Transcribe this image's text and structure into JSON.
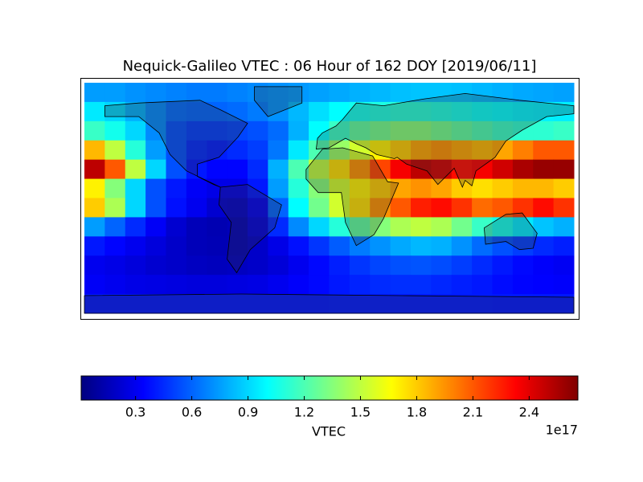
{
  "chart_data": {
    "type": "heatmap",
    "title": "Nequick-Galileo VTEC : 06 Hour of 162 DOY [2019/06/11]",
    "colormap": "jet",
    "values": [
      [
        0.75,
        0.75,
        0.72,
        0.7,
        0.68,
        0.66,
        0.66,
        0.68,
        0.7,
        0.72,
        0.74,
        0.76,
        0.78,
        0.8,
        0.82,
        0.84,
        0.85,
        0.85,
        0.84,
        0.82,
        0.8,
        0.78,
        0.77,
        0.76
      ],
      [
        0.95,
        0.9,
        0.8,
        0.7,
        0.62,
        0.6,
        0.6,
        0.62,
        0.66,
        0.72,
        0.82,
        0.92,
        1.0,
        1.05,
        1.08,
        1.1,
        1.1,
        1.08,
        1.05,
        1.02,
        1.0,
        0.98,
        0.97,
        0.96
      ],
      [
        1.15,
        1.05,
        0.9,
        0.7,
        0.55,
        0.5,
        0.5,
        0.52,
        0.55,
        0.62,
        0.8,
        1.0,
        1.15,
        1.25,
        1.3,
        1.35,
        1.35,
        1.3,
        1.25,
        1.2,
        1.15,
        1.12,
        1.12,
        1.15
      ],
      [
        1.85,
        1.5,
        1.1,
        0.75,
        0.55,
        0.45,
        0.42,
        0.45,
        0.5,
        0.65,
        0.95,
        1.2,
        1.4,
        1.55,
        1.7,
        1.8,
        1.9,
        1.95,
        1.9,
        1.85,
        1.9,
        2.0,
        2.1,
        2.1
      ],
      [
        2.5,
        2.1,
        1.5,
        0.9,
        0.55,
        0.4,
        0.35,
        0.35,
        0.45,
        0.8,
        1.2,
        1.5,
        1.75,
        1.95,
        2.15,
        2.35,
        2.5,
        2.45,
        2.3,
        2.35,
        2.45,
        2.55,
        2.6,
        2.6
      ],
      [
        1.7,
        1.35,
        0.9,
        0.55,
        0.4,
        0.32,
        0.28,
        0.28,
        0.4,
        0.75,
        1.1,
        1.35,
        1.55,
        1.7,
        1.8,
        1.9,
        1.95,
        1.9,
        1.8,
        1.75,
        1.8,
        1.85,
        1.85,
        1.8
      ],
      [
        1.8,
        1.45,
        0.9,
        0.55,
        0.38,
        0.3,
        0.22,
        0.2,
        0.3,
        0.6,
        1.0,
        1.3,
        1.55,
        1.75,
        1.95,
        2.1,
        2.25,
        2.3,
        2.2,
        2.05,
        2.1,
        2.2,
        2.3,
        2.2
      ],
      [
        0.75,
        0.6,
        0.45,
        0.32,
        0.22,
        0.16,
        0.14,
        0.16,
        0.25,
        0.45,
        0.7,
        0.9,
        1.1,
        1.25,
        1.35,
        1.45,
        1.5,
        1.45,
        1.3,
        1.15,
        1.05,
        0.95,
        0.85,
        0.8
      ],
      [
        0.4,
        0.35,
        0.3,
        0.25,
        0.2,
        0.16,
        0.15,
        0.16,
        0.2,
        0.28,
        0.38,
        0.48,
        0.58,
        0.66,
        0.72,
        0.78,
        0.82,
        0.8,
        0.72,
        0.62,
        0.55,
        0.5,
        0.45,
        0.42
      ],
      [
        0.3,
        0.28,
        0.25,
        0.22,
        0.2,
        0.18,
        0.17,
        0.18,
        0.2,
        0.24,
        0.3,
        0.36,
        0.42,
        0.48,
        0.52,
        0.55,
        0.56,
        0.54,
        0.5,
        0.45,
        0.4,
        0.36,
        0.33,
        0.31
      ],
      [
        0.32,
        0.3,
        0.28,
        0.27,
        0.26,
        0.25,
        0.25,
        0.26,
        0.27,
        0.3,
        0.33,
        0.36,
        0.4,
        0.43,
        0.45,
        0.46,
        0.46,
        0.44,
        0.42,
        0.4,
        0.37,
        0.35,
        0.34,
        0.33
      ],
      [
        0.4,
        0.4,
        0.4,
        0.4,
        0.4,
        0.4,
        0.4,
        0.4,
        0.4,
        0.4,
        0.4,
        0.4,
        0.41,
        0.41,
        0.41,
        0.41,
        0.41,
        0.41,
        0.41,
        0.41,
        0.4,
        0.4,
        0.4,
        0.4
      ]
    ],
    "colorbar": {
      "label": "VTEC",
      "offset_label": "1e17",
      "lim": [
        0.01,
        2.66
      ],
      "ticks": [
        0.3,
        0.6,
        0.9,
        1.2,
        1.5,
        1.8,
        2.1,
        2.4
      ]
    }
  }
}
